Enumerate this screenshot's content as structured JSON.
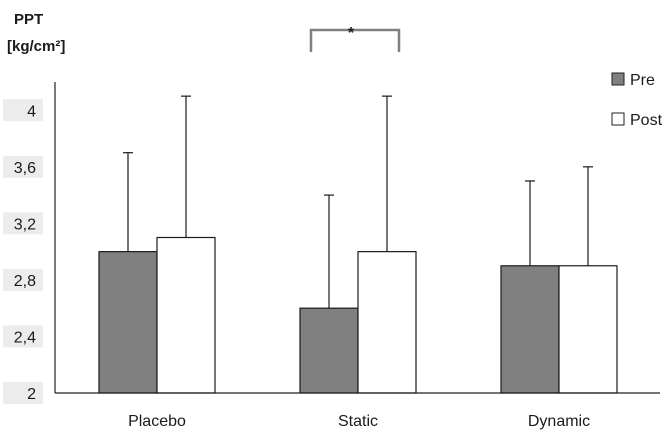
{
  "chart_data": {
    "type": "bar",
    "ylabel_line1": "PPT",
    "ylabel_line2": "[kg/cm²]",
    "categories": [
      "Placebo",
      "Static",
      "Dynamic"
    ],
    "series": [
      {
        "name": "Pre",
        "values": [
          3.0,
          2.6,
          2.9
        ],
        "error": [
          0.7,
          0.8,
          0.6
        ],
        "color": "#808080"
      },
      {
        "name": "Post",
        "values": [
          3.1,
          3.0,
          2.9
        ],
        "error": [
          1.0,
          1.1,
          0.7
        ],
        "color": "#ffffff"
      }
    ],
    "ylim": [
      2,
      4.2
    ],
    "yticks": [
      2,
      2.4,
      2.8,
      3.2,
      3.6,
      4
    ],
    "ytick_labels": [
      "2",
      "2,4",
      "2,8",
      "3,2",
      "3,6",
      "4"
    ],
    "legend_position": "top-right",
    "annotations": [
      {
        "text": "*",
        "category": "Static",
        "type": "bracket"
      }
    ]
  }
}
